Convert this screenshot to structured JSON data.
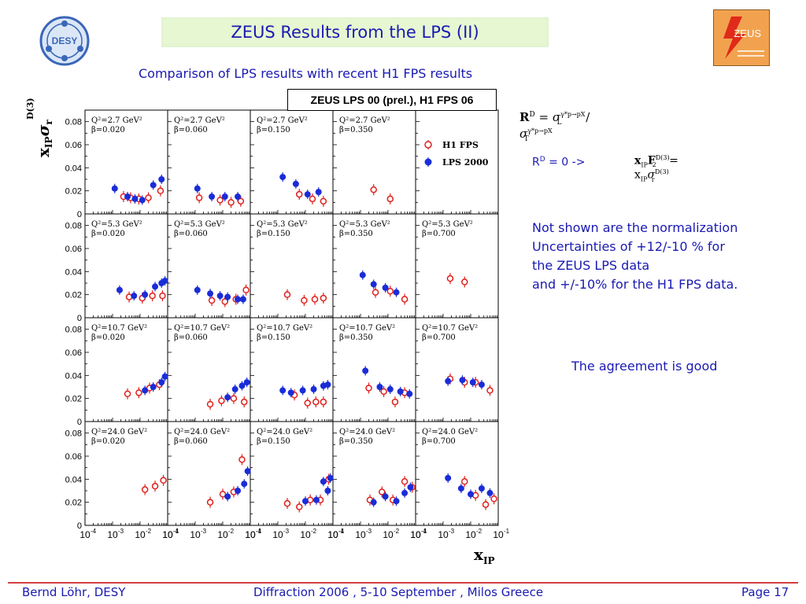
{
  "slide": {
    "title": "ZEUS Results from the LPS  (II)",
    "subtitle": "Comparison of LPS results with recent H1 FPS results",
    "desy_logo_text": "DESY",
    "zeus_logo_text": "ZEUS",
    "legend_box": "ZEUS LPS 00 (prel.), H1 FPS 06",
    "formula_rd": {
      "lhs": "R",
      "sup": "D",
      "eq": "=",
      "sigma_l": "σ",
      "sub_l": "L",
      "slash": "/",
      "sigma_t": "σ",
      "sub_t": "T",
      "sup_l": "γ*p→pX",
      "sup_t": "γ*p→pX"
    },
    "rd_zero": "R",
    "rd_zero_sup": "D",
    "rd_zero_rest": " = 0  ->",
    "formula_f2": {
      "x": "x",
      "ip": "IP",
      "f": "F",
      "two": "2",
      "d3": "D(3)",
      "eq": "= x",
      "ip2": "IP",
      "sigma": "σ",
      "r": "r",
      "d3b": "D(3)"
    },
    "note_lines": [
      "Not shown are the normalization",
      "Uncertainties of +12/-10 % for",
      "the ZEUS LPS data",
      "and +/-10% for the H1 FPS data."
    ],
    "agreement": "The agreement is good",
    "footer_left": "Bernd Löhr, DESY",
    "footer_center": "Diffraction 2006 ,  5-10 September ,  Milos Greece",
    "footer_right": "Page 17"
  },
  "chart_data": {
    "type": "scatter",
    "grid_rows": 4,
    "grid_cols": 5,
    "ylabel": "x",
    "ylabel_sub": "IP",
    "ylabel_sigma": "σ",
    "ylabel_r": "r",
    "ylabel_sup": "D(3)",
    "xlabel": "x",
    "xlabel_sub": "IP",
    "x_scale": "log",
    "xlim": [
      0.0001,
      0.1
    ],
    "ylim": [
      0,
      0.09
    ],
    "y_ticks": [
      "0",
      "0.02",
      "0.04",
      "0.06",
      "0.08"
    ],
    "x_tick_labels": [
      "10",
      "10",
      "10",
      "10"
    ],
    "x_tick_exps": [
      "-4",
      "-3",
      "-2",
      "-1"
    ],
    "legend": [
      {
        "name": "H1 FPS",
        "color": "#e0201c",
        "marker": "open-circle"
      },
      {
        "name": "LPS 2000",
        "color": "#1a2cd8",
        "marker": "filled-circle"
      }
    ],
    "panels": [
      {
        "row": 0,
        "col": 0,
        "q2": "Q²=2.7 GeV²",
        "beta": "β=0.020",
        "h1": [
          [
            0.0025,
            0.015
          ],
          [
            0.0045,
            0.014
          ],
          [
            0.009,
            0.013
          ],
          [
            0.02,
            0.014
          ],
          [
            0.055,
            0.02
          ]
        ],
        "lps": [
          [
            0.0012,
            0.022
          ],
          [
            0.0035,
            0.015
          ],
          [
            0.0065,
            0.013
          ],
          [
            0.012,
            0.012
          ],
          [
            0.03,
            0.025
          ],
          [
            0.06,
            0.03
          ]
        ]
      },
      {
        "row": 0,
        "col": 1,
        "q2": "Q²=2.7 GeV²",
        "beta": "β=0.060",
        "h1": [
          [
            0.0014,
            0.014
          ],
          [
            0.008,
            0.012
          ],
          [
            0.02,
            0.01
          ],
          [
            0.045,
            0.011
          ]
        ],
        "lps": [
          [
            0.0012,
            0.022
          ],
          [
            0.004,
            0.015
          ],
          [
            0.012,
            0.015
          ],
          [
            0.035,
            0.015
          ]
        ]
      },
      {
        "row": 0,
        "col": 2,
        "q2": "Q²=2.7 GeV²",
        "beta": "β=0.150",
        "h1": [
          [
            0.006,
            0.017
          ],
          [
            0.018,
            0.013
          ],
          [
            0.045,
            0.011
          ]
        ],
        "lps": [
          [
            0.0015,
            0.032
          ],
          [
            0.0045,
            0.026
          ],
          [
            0.012,
            0.017
          ],
          [
            0.03,
            0.019
          ]
        ]
      },
      {
        "row": 0,
        "col": 3,
        "q2": "Q²=2.7 GeV²",
        "beta": "β=0.350",
        "h1": [
          [
            0.003,
            0.021
          ],
          [
            0.012,
            0.013
          ]
        ],
        "lps": []
      },
      {
        "row": 0,
        "col": 4,
        "q2": "",
        "beta": "",
        "h1": [],
        "lps": []
      },
      {
        "row": 1,
        "col": 0,
        "q2": "Q²=5.3 GeV²",
        "beta": "β=0.020",
        "h1": [
          [
            0.004,
            0.018
          ],
          [
            0.012,
            0.017
          ],
          [
            0.028,
            0.019
          ],
          [
            0.065,
            0.019
          ]
        ],
        "lps": [
          [
            0.0018,
            0.024
          ],
          [
            0.006,
            0.019
          ],
          [
            0.015,
            0.02
          ],
          [
            0.035,
            0.027
          ],
          [
            0.06,
            0.03
          ],
          [
            0.08,
            0.032
          ]
        ]
      },
      {
        "row": 1,
        "col": 1,
        "q2": "Q²=5.3 GeV²",
        "beta": "β=0.060",
        "h1": [
          [
            0.004,
            0.015
          ],
          [
            0.012,
            0.014
          ],
          [
            0.03,
            0.016
          ],
          [
            0.07,
            0.024
          ]
        ],
        "lps": [
          [
            0.0012,
            0.024
          ],
          [
            0.0035,
            0.021
          ],
          [
            0.008,
            0.019
          ],
          [
            0.015,
            0.018
          ],
          [
            0.035,
            0.016
          ],
          [
            0.055,
            0.016
          ]
        ]
      },
      {
        "row": 1,
        "col": 2,
        "q2": "Q²=5.3 GeV²",
        "beta": "β=0.150",
        "h1": [
          [
            0.0022,
            0.02
          ],
          [
            0.009,
            0.015
          ],
          [
            0.022,
            0.016
          ],
          [
            0.045,
            0.017
          ]
        ],
        "lps": []
      },
      {
        "row": 1,
        "col": 3,
        "q2": "Q²=5.3 GeV²",
        "beta": "β=0.350",
        "h1": [
          [
            0.0035,
            0.022
          ],
          [
            0.012,
            0.023
          ],
          [
            0.04,
            0.016
          ]
        ],
        "lps": [
          [
            0.0012,
            0.037
          ],
          [
            0.003,
            0.029
          ],
          [
            0.008,
            0.026
          ],
          [
            0.02,
            0.022
          ]
        ]
      },
      {
        "row": 1,
        "col": 4,
        "q2": "Q²=5.3 GeV²",
        "beta": "β=0.700",
        "h1": [
          [
            0.0018,
            0.034
          ],
          [
            0.006,
            0.031
          ]
        ],
        "lps": []
      },
      {
        "row": 2,
        "col": 0,
        "q2": "Q²=10.7 GeV²",
        "beta": "β=0.020",
        "h1": [
          [
            0.0035,
            0.024
          ],
          [
            0.009,
            0.025
          ],
          [
            0.022,
            0.029
          ],
          [
            0.05,
            0.032
          ]
        ],
        "lps": [
          [
            0.015,
            0.027
          ],
          [
            0.03,
            0.03
          ],
          [
            0.06,
            0.034
          ],
          [
            0.08,
            0.039
          ]
        ]
      },
      {
        "row": 2,
        "col": 1,
        "q2": "Q²=10.7 GeV²",
        "beta": "β=0.060",
        "h1": [
          [
            0.0035,
            0.015
          ],
          [
            0.009,
            0.018
          ],
          [
            0.025,
            0.02
          ],
          [
            0.06,
            0.017
          ]
        ],
        "lps": [
          [
            0.015,
            0.021
          ],
          [
            0.028,
            0.028
          ],
          [
            0.05,
            0.031
          ],
          [
            0.075,
            0.034
          ]
        ]
      },
      {
        "row": 2,
        "col": 2,
        "q2": "Q²=10.7 GeV²",
        "beta": "β=0.150",
        "h1": [
          [
            0.004,
            0.023
          ],
          [
            0.012,
            0.016
          ],
          [
            0.024,
            0.017
          ],
          [
            0.045,
            0.017
          ]
        ],
        "lps": [
          [
            0.0015,
            0.027
          ],
          [
            0.003,
            0.025
          ],
          [
            0.008,
            0.027
          ],
          [
            0.02,
            0.028
          ],
          [
            0.045,
            0.031
          ],
          [
            0.065,
            0.032
          ]
        ]
      },
      {
        "row": 2,
        "col": 3,
        "q2": "Q²=10.7 GeV²",
        "beta": "β=0.350",
        "h1": [
          [
            0.002,
            0.029
          ],
          [
            0.007,
            0.026
          ],
          [
            0.018,
            0.017
          ],
          [
            0.04,
            0.025
          ]
        ],
        "lps": [
          [
            0.0015,
            0.044
          ],
          [
            0.005,
            0.03
          ],
          [
            0.012,
            0.028
          ],
          [
            0.028,
            0.026
          ],
          [
            0.06,
            0.024
          ]
        ]
      },
      {
        "row": 2,
        "col": 4,
        "q2": "Q²=10.7 GeV²",
        "beta": "β=0.700",
        "h1": [
          [
            0.0018,
            0.037
          ],
          [
            0.006,
            0.034
          ],
          [
            0.015,
            0.034
          ],
          [
            0.05,
            0.027
          ]
        ],
        "lps": [
          [
            0.0015,
            0.035
          ],
          [
            0.005,
            0.036
          ],
          [
            0.012,
            0.034
          ],
          [
            0.025,
            0.032
          ]
        ]
      },
      {
        "row": 3,
        "col": 0,
        "q2": "Q²=24.0 GeV²",
        "beta": "β=0.020",
        "h1": [
          [
            0.015,
            0.031
          ],
          [
            0.035,
            0.034
          ],
          [
            0.07,
            0.039
          ]
        ],
        "lps": []
      },
      {
        "row": 3,
        "col": 1,
        "q2": "Q²=24.0 GeV²",
        "beta": "β=0.060",
        "h1": [
          [
            0.0035,
            0.02
          ],
          [
            0.01,
            0.027
          ],
          [
            0.025,
            0.029
          ],
          [
            0.05,
            0.057
          ]
        ],
        "lps": [
          [
            0.015,
            0.025
          ],
          [
            0.035,
            0.03
          ],
          [
            0.06,
            0.036
          ],
          [
            0.08,
            0.047
          ]
        ]
      },
      {
        "row": 3,
        "col": 2,
        "q2": "Q²=24.0 GeV²",
        "beta": "β=0.150",
        "h1": [
          [
            0.0022,
            0.019
          ],
          [
            0.006,
            0.016
          ],
          [
            0.015,
            0.022
          ],
          [
            0.035,
            0.022
          ],
          [
            0.07,
            0.04
          ]
        ],
        "lps": [
          [
            0.01,
            0.021
          ],
          [
            0.025,
            0.022
          ],
          [
            0.045,
            0.038
          ],
          [
            0.065,
            0.03
          ],
          [
            0.08,
            0.041
          ]
        ]
      },
      {
        "row": 3,
        "col": 3,
        "q2": "Q²=24.0 GeV²",
        "beta": "β=0.350",
        "h1": [
          [
            0.0022,
            0.022
          ],
          [
            0.006,
            0.029
          ],
          [
            0.015,
            0.022
          ],
          [
            0.04,
            0.038
          ],
          [
            0.075,
            0.033
          ]
        ],
        "lps": [
          [
            0.003,
            0.02
          ],
          [
            0.008,
            0.025
          ],
          [
            0.02,
            0.021
          ],
          [
            0.04,
            0.028
          ],
          [
            0.065,
            0.033
          ]
        ]
      },
      {
        "row": 3,
        "col": 4,
        "q2": "Q²=24.0 GeV²",
        "beta": "β=0.700",
        "h1": [
          [
            0.006,
            0.038
          ],
          [
            0.015,
            0.026
          ],
          [
            0.035,
            0.018
          ],
          [
            0.07,
            0.023
          ]
        ],
        "lps": [
          [
            0.0015,
            0.041
          ],
          [
            0.0045,
            0.032
          ],
          [
            0.01,
            0.027
          ],
          [
            0.025,
            0.032
          ],
          [
            0.05,
            0.028
          ]
        ]
      }
    ]
  }
}
